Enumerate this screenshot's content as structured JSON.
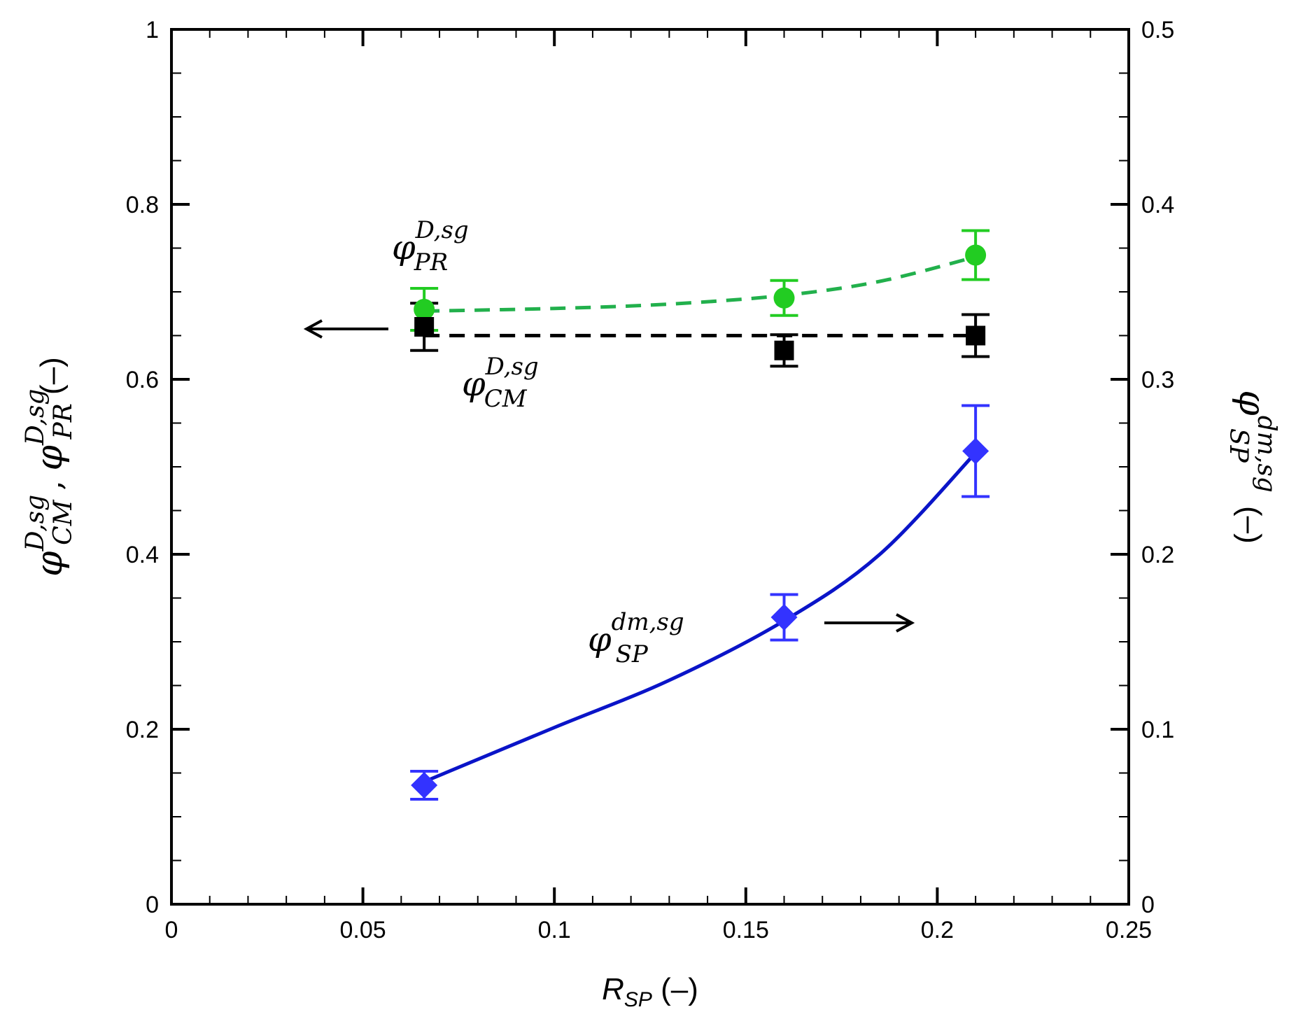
{
  "chart_data": {
    "type": "scatter",
    "title": "",
    "xlabel": {
      "main": "R",
      "sub": "SP",
      "unit": " (–)"
    },
    "ylabel_left": {
      "sym1": "φ",
      "sup1": "D,sg",
      "sub1": "CM",
      "sep": " , ",
      "sym2": "φ",
      "sup2": "D,sg",
      "sub2": "PR",
      "unit": " (–)"
    },
    "ylabel_right": {
      "sym": "φ",
      "sup": "dm,sg",
      "sub": "SP",
      "unit": " (–)"
    },
    "xlim": [
      0,
      0.25
    ],
    "ylim_left": [
      0,
      1
    ],
    "ylim_right": [
      0,
      0.5
    ],
    "xticks": [
      {
        "value": 0,
        "label": "0"
      },
      {
        "value": 0.05,
        "label": "0.05"
      },
      {
        "value": 0.1,
        "label": "0.1"
      },
      {
        "value": 0.15,
        "label": "0.15"
      },
      {
        "value": 0.2,
        "label": "0.2"
      },
      {
        "value": 0.25,
        "label": "0.25"
      }
    ],
    "yticks_left": [
      {
        "value": 0,
        "label": "0"
      },
      {
        "value": 0.2,
        "label": "0.2"
      },
      {
        "value": 0.4,
        "label": "0.4"
      },
      {
        "value": 0.6,
        "label": "0.6"
      },
      {
        "value": 0.8,
        "label": "0.8"
      },
      {
        "value": 1,
        "label": "1"
      }
    ],
    "yticks_right": [
      {
        "value": 0,
        "label": "0"
      },
      {
        "value": 0.1,
        "label": "0.1"
      },
      {
        "value": 0.2,
        "label": "0.2"
      },
      {
        "value": 0.3,
        "label": "0.3"
      },
      {
        "value": 0.4,
        "label": "0.4"
      },
      {
        "value": 0.5,
        "label": "0.5"
      }
    ],
    "series": [
      {
        "id": "pr",
        "name": "φ_PR^D,sg",
        "axis": "left",
        "marker": "circle",
        "color": "#22cc22",
        "errColor": "#22cc22",
        "x": [
          0.066,
          0.16,
          0.21
        ],
        "y": [
          0.68,
          0.693,
          0.742
        ],
        "err": [
          0.024,
          0.02,
          0.028
        ],
        "fit": {
          "style": "dashed",
          "color": "#22b04c",
          "x": [
            0.066,
            0.1,
            0.13,
            0.16,
            0.185,
            0.21
          ],
          "y": [
            0.678,
            0.681,
            0.686,
            0.696,
            0.712,
            0.74
          ]
        }
      },
      {
        "id": "cm",
        "name": "φ_CM^D,sg",
        "axis": "left",
        "marker": "square",
        "color": "#000000",
        "errColor": "#000000",
        "x": [
          0.066,
          0.16,
          0.21
        ],
        "y": [
          0.66,
          0.633,
          0.65
        ],
        "err": [
          0.027,
          0.018,
          0.024
        ],
        "fit": {
          "style": "dashed",
          "color": "#000000",
          "x": [
            0.066,
            0.21
          ],
          "y": [
            0.65,
            0.65
          ]
        }
      },
      {
        "id": "sp",
        "name": "φ_SP^dm,sg",
        "axis": "right",
        "marker": "diamond",
        "color": "#3333ff",
        "errColor": "#3333ff",
        "x": [
          0.066,
          0.16,
          0.21
        ],
        "y": [
          0.068,
          0.164,
          0.259
        ],
        "err": [
          0.008,
          0.013,
          0.026
        ],
        "fit": {
          "style": "solid",
          "color": "#0a14c8",
          "x": [
            0.066,
            0.1,
            0.13,
            0.16,
            0.185,
            0.21
          ],
          "y": [
            0.07,
            0.101,
            0.128,
            0.162,
            0.2,
            0.258
          ]
        }
      }
    ],
    "annotations": [
      {
        "id": "pr",
        "sym": "φ",
        "sup": "D,sg",
        "sub": "PR",
        "arrow": "left"
      },
      {
        "id": "cm",
        "sym": "φ",
        "sup": "D,sg",
        "sub": "CM",
        "arrow": "none"
      },
      {
        "id": "sp",
        "sym": "φ",
        "sup": "dm,sg",
        "sub": "SP",
        "arrow": "right"
      }
    ]
  }
}
